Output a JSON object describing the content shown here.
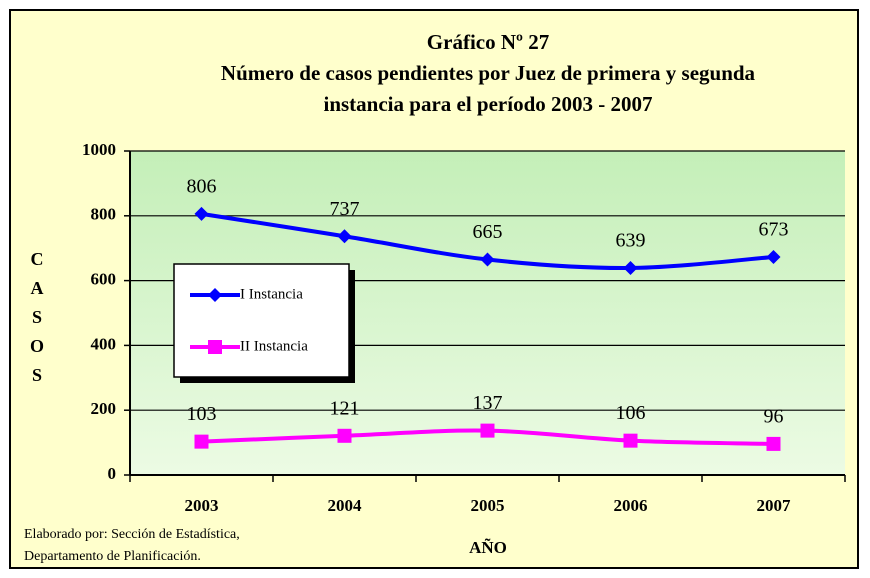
{
  "chart_data": {
    "type": "line",
    "title": [
      "Gráfico Nº 27",
      "Número de casos pendientes por Juez de primera y segunda",
      "instancia  para el período  2003 - 2007"
    ],
    "x_label": "AÑO",
    "y_label": "CASOS",
    "source": [
      "Elaborado por: Sección de Estadística,",
      "Departamento de Planificación."
    ],
    "categories": [
      "2003",
      "2004",
      "2005",
      "2006",
      "2007"
    ],
    "series": [
      {
        "name": "I Instancia",
        "color": "#0000ff",
        "marker": "diamond",
        "values": [
          806,
          737,
          665,
          639,
          673
        ]
      },
      {
        "name": "II Instancia",
        "color": "#ff00ff",
        "marker": "square",
        "values": [
          103,
          121,
          137,
          106,
          96
        ]
      }
    ],
    "ylim": [
      0,
      1000
    ],
    "yticks": [
      0,
      200,
      400,
      600,
      800,
      1000
    ],
    "grid": true,
    "legend": "left"
  }
}
